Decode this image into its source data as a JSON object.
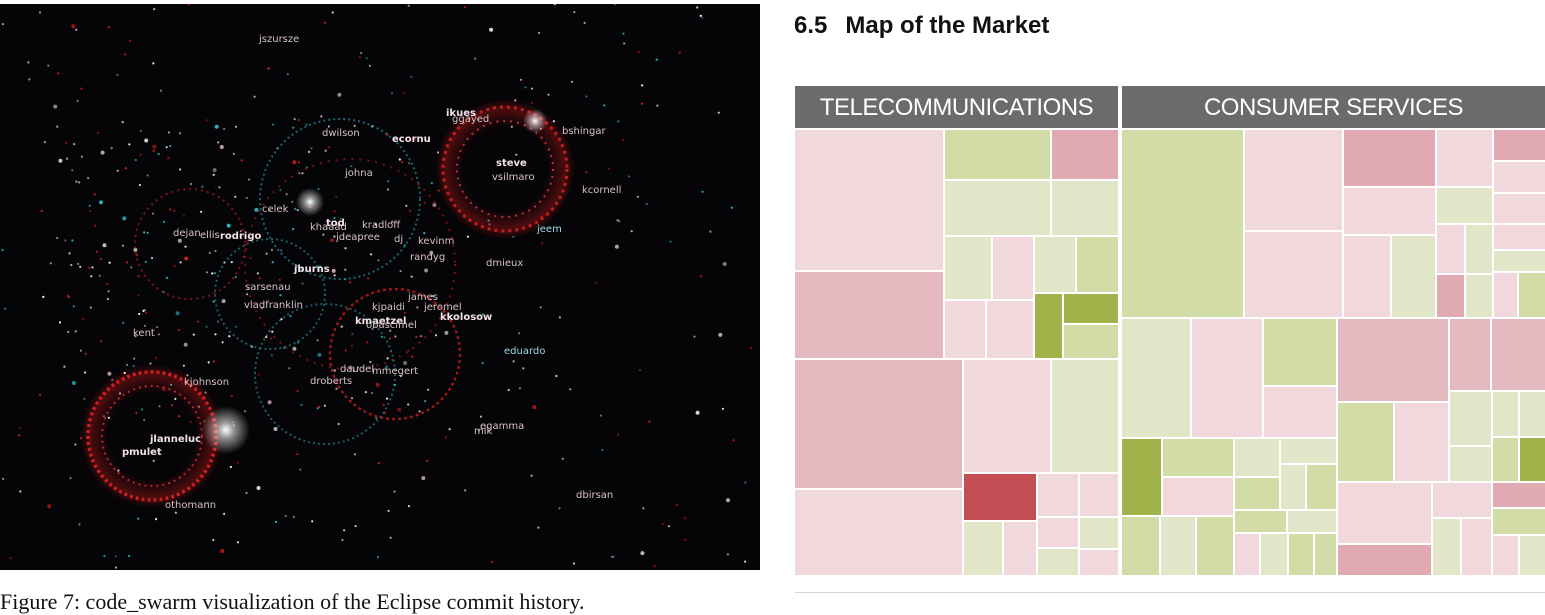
{
  "left_figure": {
    "labels": [
      "jszursze",
      "ikues",
      "ggayed",
      "bshingar",
      "dwilson",
      "ecornu",
      "steve",
      "vsilmaro",
      "johna",
      "kcornell",
      "celek",
      "tod",
      "kradloff",
      "jeem",
      "dejan",
      "ellis",
      "rodrigo",
      "khaaad",
      "jdeapree",
      "dj",
      "kevinm",
      "randyg",
      "jburns",
      "dmieux",
      "sarsenau",
      "james",
      "jeromel",
      "vladfranklin",
      "kjpaidi",
      "kmaetzel",
      "kkolosow",
      "obascimel",
      "kent",
      "eduardo",
      "daudel",
      "mmegert",
      "kjohnson",
      "droberts",
      "jlanneluc",
      "pmulet",
      "egamma",
      "mik",
      "dbirsan",
      "othomann"
    ]
  },
  "caption": "Figure 7: code_swarm visualization of the Eclipse commit history.",
  "section": {
    "number": "6.5",
    "title": "Map of the Market"
  },
  "treemap": {
    "sectors": [
      {
        "name": "TELECOMMUNICATIONS"
      },
      {
        "name": "CONSUMER SERVICES"
      }
    ],
    "colors": {
      "pink_light": "#f0d8dc",
      "pink": "#e3b8be",
      "pink_mid": "#e1a9b1",
      "red_dark": "#c24e54",
      "green_light": "#e1e6c8",
      "green": "#d2dca6",
      "green_dark": "#a2b24a"
    }
  }
}
